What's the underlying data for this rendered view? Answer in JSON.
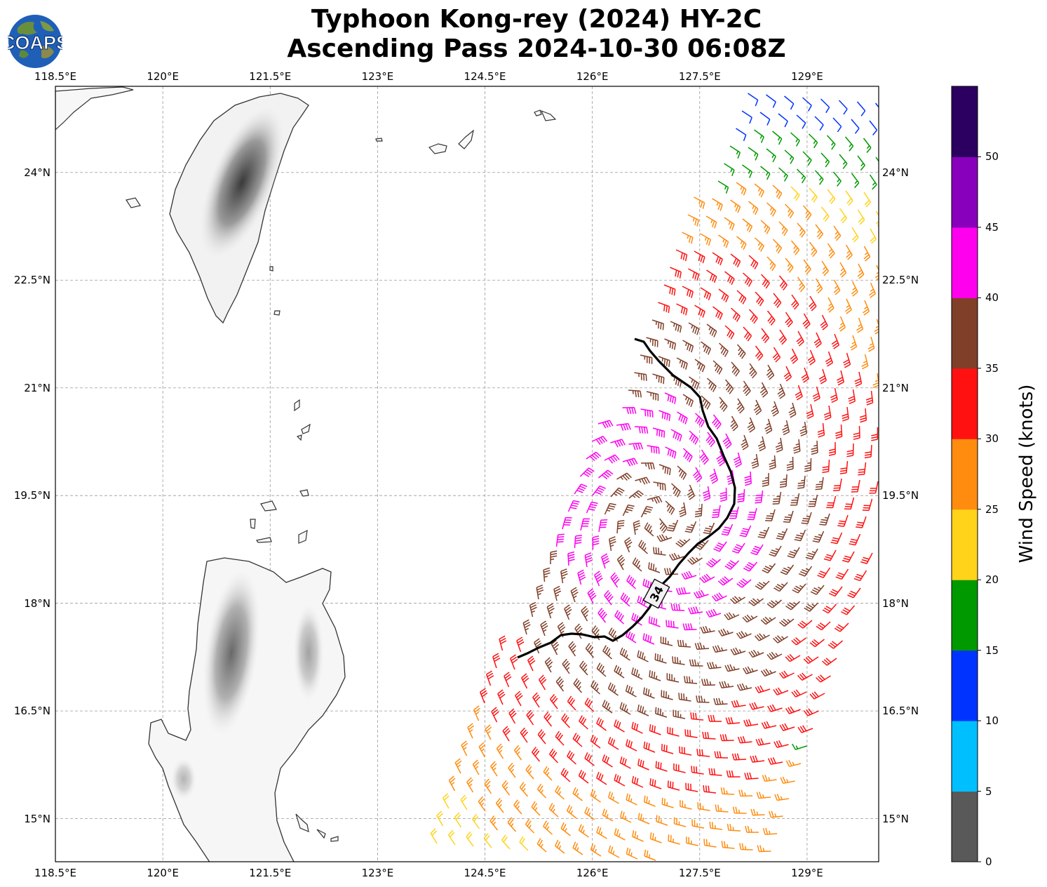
{
  "title": {
    "line1": "Typhoon Kong-rey (2024) HY-2C",
    "line2": "Ascending Pass 2024-10-30 06:08Z"
  },
  "logo": {
    "text": "COAPS",
    "icon": "earth-globe-icon"
  },
  "map": {
    "lon_range": [
      118.5,
      130.0
    ],
    "lat_range": [
      14.4,
      25.2
    ],
    "grid": true,
    "lon_ticks": [
      "118.5°E",
      "120°E",
      "121.5°E",
      "123°E",
      "124.5°E",
      "126°E",
      "127.5°E",
      "129°E"
    ],
    "lat_ticks": [
      "24°N",
      "22.5°N",
      "21°N",
      "19.5°N",
      "18°N",
      "16.5°N",
      "15°N"
    ],
    "contour_label": "34",
    "contour_color": "#000000"
  },
  "colorbar": {
    "title": "Wind Speed (knots)",
    "labels": [
      "0",
      "5",
      "10",
      "15",
      "20",
      "25",
      "30",
      "35",
      "40",
      "45",
      "50"
    ],
    "colors": [
      "#595959",
      "#00bfff",
      "#0033ff",
      "#009900",
      "#ffd31a",
      "#ff8c0f",
      "#ff1111",
      "#803f29",
      "#ff00ee",
      "#8800bb",
      "#2b0060"
    ]
  }
}
